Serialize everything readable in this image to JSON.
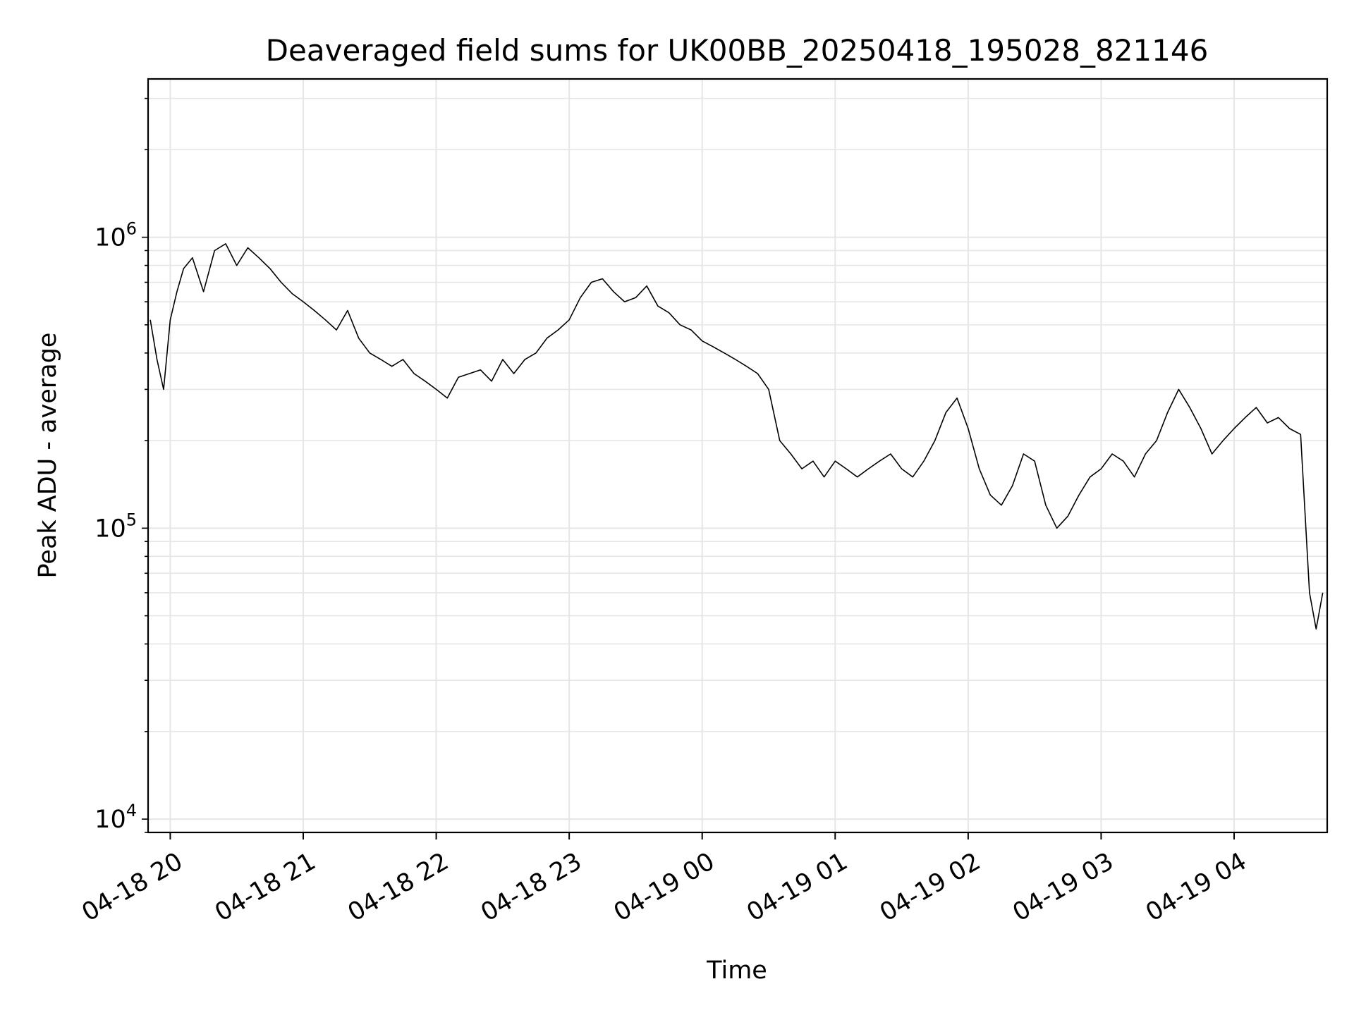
{
  "chart_data": {
    "type": "line",
    "title": "Deaveraged field sums for UK00BB_20250418_195028_821146",
    "xlabel": "Time",
    "ylabel": "Peak ADU - average",
    "yscale": "log",
    "ylim": [
      9000,
      3500000
    ],
    "xlim": [
      "2025-04-18 19:50",
      "2025-04-19 04:42"
    ],
    "grid": true,
    "line_color": "#000000",
    "x_ticks": [
      {
        "t": "2025-04-18 20:00",
        "label": "04-18 20"
      },
      {
        "t": "2025-04-18 21:00",
        "label": "04-18 21"
      },
      {
        "t": "2025-04-18 22:00",
        "label": "04-18 22"
      },
      {
        "t": "2025-04-18 23:00",
        "label": "04-18 23"
      },
      {
        "t": "2025-04-19 00:00",
        "label": "04-19 00"
      },
      {
        "t": "2025-04-19 01:00",
        "label": "04-19 01"
      },
      {
        "t": "2025-04-19 02:00",
        "label": "04-19 02"
      },
      {
        "t": "2025-04-19 03:00",
        "label": "04-19 03"
      },
      {
        "t": "2025-04-19 04:00",
        "label": "04-19 04"
      }
    ],
    "y_ticks": [
      {
        "value": 10000,
        "base": "10",
        "exp": "4"
      },
      {
        "value": 100000,
        "base": "10",
        "exp": "5"
      },
      {
        "value": 1000000,
        "base": "10",
        "exp": "6"
      }
    ],
    "series": [
      {
        "points": [
          [
            "2025-04-18 19:51",
            520000
          ],
          [
            "2025-04-18 19:54",
            380000
          ],
          [
            "2025-04-18 19:57",
            300000
          ],
          [
            "2025-04-18 20:00",
            520000
          ],
          [
            "2025-04-18 20:03",
            650000
          ],
          [
            "2025-04-18 20:06",
            780000
          ],
          [
            "2025-04-18 20:10",
            850000
          ],
          [
            "2025-04-18 20:15",
            650000
          ],
          [
            "2025-04-18 20:20",
            900000
          ],
          [
            "2025-04-18 20:25",
            950000
          ],
          [
            "2025-04-18 20:30",
            800000
          ],
          [
            "2025-04-18 20:35",
            920000
          ],
          [
            "2025-04-18 20:40",
            850000
          ],
          [
            "2025-04-18 20:45",
            780000
          ],
          [
            "2025-04-18 20:50",
            700000
          ],
          [
            "2025-04-18 20:55",
            640000
          ],
          [
            "2025-04-18 21:00",
            600000
          ],
          [
            "2025-04-18 21:05",
            560000
          ],
          [
            "2025-04-18 21:10",
            520000
          ],
          [
            "2025-04-18 21:15",
            480000
          ],
          [
            "2025-04-18 21:20",
            560000
          ],
          [
            "2025-04-18 21:25",
            450000
          ],
          [
            "2025-04-18 21:30",
            400000
          ],
          [
            "2025-04-18 21:35",
            380000
          ],
          [
            "2025-04-18 21:40",
            360000
          ],
          [
            "2025-04-18 21:45",
            380000
          ],
          [
            "2025-04-18 21:50",
            340000
          ],
          [
            "2025-04-18 21:55",
            320000
          ],
          [
            "2025-04-18 22:00",
            300000
          ],
          [
            "2025-04-18 22:05",
            280000
          ],
          [
            "2025-04-18 22:10",
            330000
          ],
          [
            "2025-04-18 22:15",
            340000
          ],
          [
            "2025-04-18 22:20",
            350000
          ],
          [
            "2025-04-18 22:25",
            320000
          ],
          [
            "2025-04-18 22:30",
            380000
          ],
          [
            "2025-04-18 22:35",
            340000
          ],
          [
            "2025-04-18 22:40",
            380000
          ],
          [
            "2025-04-18 22:45",
            400000
          ],
          [
            "2025-04-18 22:50",
            450000
          ],
          [
            "2025-04-18 22:55",
            480000
          ],
          [
            "2025-04-18 23:00",
            520000
          ],
          [
            "2025-04-18 23:05",
            620000
          ],
          [
            "2025-04-18 23:10",
            700000
          ],
          [
            "2025-04-18 23:15",
            720000
          ],
          [
            "2025-04-18 23:20",
            650000
          ],
          [
            "2025-04-18 23:25",
            600000
          ],
          [
            "2025-04-18 23:30",
            620000
          ],
          [
            "2025-04-18 23:35",
            680000
          ],
          [
            "2025-04-18 23:40",
            580000
          ],
          [
            "2025-04-18 23:45",
            550000
          ],
          [
            "2025-04-18 23:50",
            500000
          ],
          [
            "2025-04-18 23:55",
            480000
          ],
          [
            "2025-04-19 00:00",
            440000
          ],
          [
            "2025-04-19 00:05",
            420000
          ],
          [
            "2025-04-19 00:10",
            400000
          ],
          [
            "2025-04-19 00:15",
            380000
          ],
          [
            "2025-04-19 00:20",
            360000
          ],
          [
            "2025-04-19 00:25",
            340000
          ],
          [
            "2025-04-19 00:30",
            300000
          ],
          [
            "2025-04-19 00:35",
            200000
          ],
          [
            "2025-04-19 00:40",
            180000
          ],
          [
            "2025-04-19 00:45",
            160000
          ],
          [
            "2025-04-19 00:50",
            170000
          ],
          [
            "2025-04-19 00:55",
            150000
          ],
          [
            "2025-04-19 01:00",
            170000
          ],
          [
            "2025-04-19 01:05",
            160000
          ],
          [
            "2025-04-19 01:10",
            150000
          ],
          [
            "2025-04-19 01:15",
            160000
          ],
          [
            "2025-04-19 01:20",
            170000
          ],
          [
            "2025-04-19 01:25",
            180000
          ],
          [
            "2025-04-19 01:30",
            160000
          ],
          [
            "2025-04-19 01:35",
            150000
          ],
          [
            "2025-04-19 01:40",
            170000
          ],
          [
            "2025-04-19 01:45",
            200000
          ],
          [
            "2025-04-19 01:50",
            250000
          ],
          [
            "2025-04-19 01:55",
            280000
          ],
          [
            "2025-04-19 02:00",
            220000
          ],
          [
            "2025-04-19 02:05",
            160000
          ],
          [
            "2025-04-19 02:10",
            130000
          ],
          [
            "2025-04-19 02:15",
            120000
          ],
          [
            "2025-04-19 02:20",
            140000
          ],
          [
            "2025-04-19 02:25",
            180000
          ],
          [
            "2025-04-19 02:30",
            170000
          ],
          [
            "2025-04-19 02:35",
            120000
          ],
          [
            "2025-04-19 02:40",
            100000
          ],
          [
            "2025-04-19 02:45",
            110000
          ],
          [
            "2025-04-19 02:50",
            130000
          ],
          [
            "2025-04-19 02:55",
            150000
          ],
          [
            "2025-04-19 03:00",
            160000
          ],
          [
            "2025-04-19 03:05",
            180000
          ],
          [
            "2025-04-19 03:10",
            170000
          ],
          [
            "2025-04-19 03:15",
            150000
          ],
          [
            "2025-04-19 03:20",
            180000
          ],
          [
            "2025-04-19 03:25",
            200000
          ],
          [
            "2025-04-19 03:30",
            250000
          ],
          [
            "2025-04-19 03:35",
            300000
          ],
          [
            "2025-04-19 03:40",
            260000
          ],
          [
            "2025-04-19 03:45",
            220000
          ],
          [
            "2025-04-19 03:50",
            180000
          ],
          [
            "2025-04-19 03:55",
            200000
          ],
          [
            "2025-04-19 04:00",
            220000
          ],
          [
            "2025-04-19 04:05",
            240000
          ],
          [
            "2025-04-19 04:10",
            260000
          ],
          [
            "2025-04-19 04:15",
            230000
          ],
          [
            "2025-04-19 04:20",
            240000
          ],
          [
            "2025-04-19 04:25",
            220000
          ],
          [
            "2025-04-19 04:30",
            210000
          ],
          [
            "2025-04-19 04:34",
            60000
          ],
          [
            "2025-04-19 04:37",
            45000
          ],
          [
            "2025-04-19 04:40",
            60000
          ]
        ]
      }
    ]
  }
}
